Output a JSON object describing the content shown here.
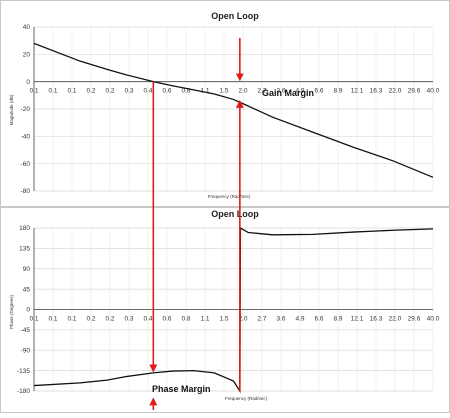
{
  "chart_data": [
    {
      "type": "line",
      "title": "Open Loop",
      "xlabel": "Frequency (Rad/Sec)",
      "ylabel": "Magnitude (dB)",
      "x_ticks": [
        "0.1",
        "0.1",
        "0.1",
        "0.2",
        "0.2",
        "0.3",
        "0.4",
        "0.6",
        "0.8",
        "1.1",
        "1.5",
        "2.0",
        "2.7",
        "3.6",
        "4.9",
        "6.6",
        "8.9",
        "12.1",
        "16.3",
        "22.0",
        "29.6",
        "40.0"
      ],
      "ylim": [
        -80,
        40
      ],
      "y_ticks": [
        40,
        20,
        0,
        -20,
        -40,
        -60,
        -80
      ],
      "series": [
        {
          "x": [
            0.1,
            0.2,
            0.3,
            0.4,
            0.6,
            0.8,
            1.1,
            1.5,
            2.0,
            2.4,
            3.6,
            6.6,
            12.1,
            22.0,
            40.0
          ],
          "y": [
            28,
            15,
            9,
            5,
            0,
            -3,
            -6,
            -9,
            -13,
            -17,
            -26,
            -37,
            -48,
            -58,
            -70
          ]
        }
      ],
      "annotation": {
        "text": "Gain Margin",
        "x": 2.2
      }
    },
    {
      "type": "line",
      "title": "Open Loop",
      "xlabel": "Frequency (Rad/sec)",
      "ylabel": "Phase (Degrees)",
      "x_ticks": [
        "0.1",
        "0.1",
        "0.1",
        "0.2",
        "0.2",
        "0.3",
        "0.4",
        "0.6",
        "0.8",
        "1.1",
        "1.5",
        "2.0",
        "2.7",
        "3.6",
        "4.9",
        "6.6",
        "8.9",
        "12.1",
        "16.3",
        "22.0",
        "29.6",
        "40.0"
      ],
      "ylim": [
        -180,
        180
      ],
      "y_ticks": [
        180,
        135,
        90,
        45,
        0,
        -45,
        -90,
        -135,
        -180
      ],
      "series": [
        {
          "x": [
            0.1,
            0.2,
            0.3,
            0.4,
            0.6,
            0.8,
            1.1,
            1.5,
            2.0,
            2.2,
            2.22,
            2.5,
            3.6,
            6.6,
            12.1,
            22.0,
            40.0
          ],
          "y": [
            -168,
            -162,
            -156,
            -148,
            -140,
            -136,
            -135,
            -140,
            -158,
            -180,
            180,
            170,
            165,
            166,
            171,
            175,
            178
          ]
        }
      ],
      "annotation": {
        "text": "Phase Margin",
        "x": 0.6
      }
    }
  ]
}
